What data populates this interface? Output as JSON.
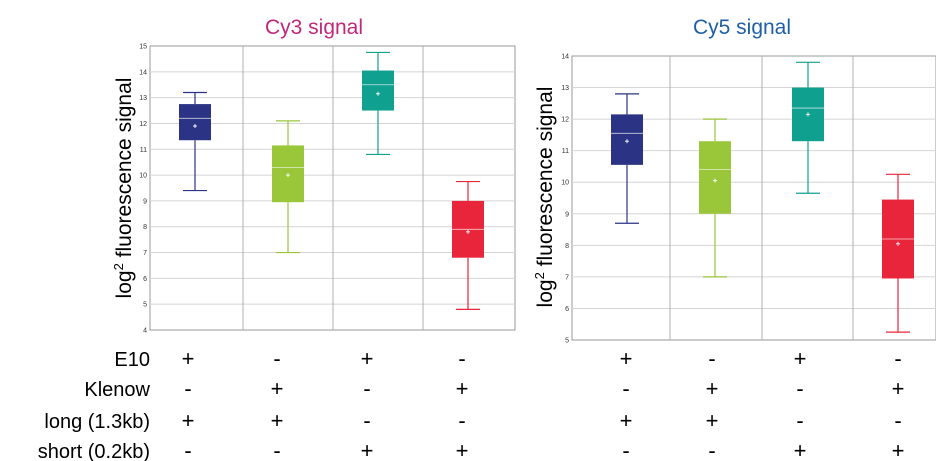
{
  "charts": [
    {
      "title": "Cy3 signal",
      "title_color": "#c2287a",
      "ylabel": "log2 fluorescence signal",
      "type": "box",
      "ylim": [
        4,
        15
      ],
      "yticks": [
        "4",
        "5",
        "6",
        "7",
        "8",
        "9",
        "10",
        "11",
        "12",
        "13",
        "14",
        "15"
      ],
      "ytick_values": [
        4,
        5,
        6,
        7,
        8,
        9,
        10,
        11,
        12,
        13,
        14,
        15
      ],
      "boxes": [
        {
          "color": "#2a3384",
          "whisker_low": 9.4,
          "q1": 11.35,
          "median": 12.2,
          "q3": 12.75,
          "whisker_high": 13.2,
          "mean": 11.9
        },
        {
          "color": "#9ac63a",
          "whisker_low": 7.0,
          "q1": 8.95,
          "median": 10.3,
          "q3": 11.15,
          "whisker_high": 12.1,
          "mean": 10.0
        },
        {
          "color": "#0fa090",
          "whisker_low": 10.8,
          "q1": 12.5,
          "median": 13.5,
          "q3": 14.05,
          "whisker_high": 14.75,
          "mean": 13.15
        },
        {
          "color": "#e8253a",
          "whisker_low": 4.8,
          "q1": 6.8,
          "median": 7.9,
          "q3": 9.0,
          "whisker_high": 9.75,
          "mean": 7.8
        }
      ]
    },
    {
      "title": "Cy5 signal",
      "title_color": "#1f5fa6",
      "ylabel": "log2 fluorescence signal",
      "type": "box",
      "ylim": [
        5,
        14
      ],
      "yticks": [
        "5",
        "6",
        "7",
        "8",
        "9",
        "10",
        "11",
        "12",
        "13",
        "14"
      ],
      "ytick_values": [
        5,
        6,
        7,
        8,
        9,
        10,
        11,
        12,
        13,
        14
      ],
      "boxes": [
        {
          "color": "#2a3384",
          "whisker_low": 8.7,
          "q1": 10.55,
          "median": 11.55,
          "q3": 12.15,
          "whisker_high": 12.8,
          "mean": 11.3
        },
        {
          "color": "#9ac63a",
          "whisker_low": 7.0,
          "q1": 9.0,
          "median": 10.4,
          "q3": 11.3,
          "whisker_high": 12.0,
          "mean": 10.05
        },
        {
          "color": "#0fa090",
          "whisker_low": 9.65,
          "q1": 11.3,
          "median": 12.35,
          "q3": 13.0,
          "whisker_high": 13.8,
          "mean": 12.15
        },
        {
          "color": "#e8253a",
          "whisker_low": 5.25,
          "q1": 6.95,
          "median": 8.2,
          "q3": 9.45,
          "whisker_high": 10.25,
          "mean": 8.05
        }
      ]
    }
  ],
  "condition_table": {
    "rows": [
      {
        "label": "E10",
        "signs": [
          "+",
          "-",
          "+",
          "-"
        ]
      },
      {
        "label": "Klenow",
        "signs": [
          "-",
          "+",
          "-",
          "+"
        ]
      },
      {
        "label": "long (1.3kb)",
        "signs": [
          "+",
          "+",
          "-",
          "-"
        ]
      },
      {
        "label": "short (0.2kb)",
        "signs": [
          "-",
          "-",
          "+",
          "+"
        ]
      }
    ]
  },
  "chart_data": [
    {
      "type": "box",
      "title": "Cy3 signal",
      "ylabel": "log2 fluorescence signal",
      "ylim": [
        4,
        15
      ],
      "categories": [
        "E10+ Klenow- long+ short-",
        "E10- Klenow+ long+ short-",
        "E10+ Klenow- long- short+",
        "E10- Klenow+ long- short+"
      ],
      "series": [
        {
          "whisker_low": [
            9.4,
            7.0,
            10.8,
            4.8
          ],
          "q1": [
            11.35,
            8.95,
            12.5,
            6.8
          ],
          "median": [
            12.2,
            10.3,
            13.5,
            7.9
          ],
          "q3": [
            12.75,
            11.15,
            14.05,
            9.0
          ],
          "whisker_high": [
            13.2,
            12.1,
            14.75,
            9.75
          ],
          "mean": [
            11.9,
            10.0,
            13.15,
            7.8
          ]
        }
      ],
      "grid": true
    },
    {
      "type": "box",
      "title": "Cy5 signal",
      "ylabel": "log2 fluorescence signal",
      "ylim": [
        5,
        14
      ],
      "categories": [
        "E10+ Klenow- long+ short-",
        "E10- Klenow+ long+ short-",
        "E10+ Klenow- long- short+",
        "E10- Klenow+ long- short+"
      ],
      "series": [
        {
          "whisker_low": [
            8.7,
            7.0,
            9.65,
            5.25
          ],
          "q1": [
            10.55,
            9.0,
            11.3,
            6.95
          ],
          "median": [
            11.55,
            10.4,
            12.35,
            8.2
          ],
          "q3": [
            12.15,
            11.3,
            13.0,
            9.45
          ],
          "whisker_high": [
            12.8,
            12.0,
            13.8,
            10.25
          ],
          "mean": [
            11.3,
            10.05,
            12.15,
            8.05
          ]
        }
      ],
      "grid": true
    }
  ]
}
